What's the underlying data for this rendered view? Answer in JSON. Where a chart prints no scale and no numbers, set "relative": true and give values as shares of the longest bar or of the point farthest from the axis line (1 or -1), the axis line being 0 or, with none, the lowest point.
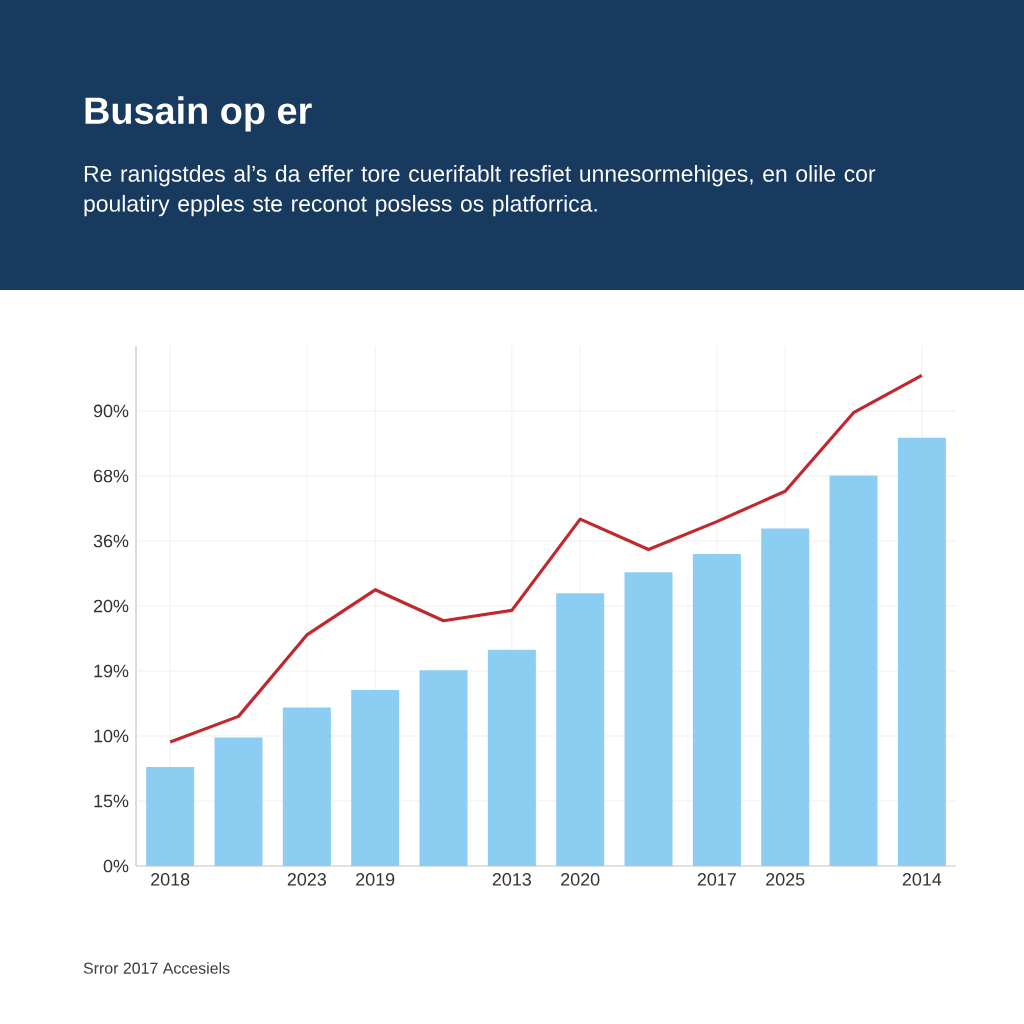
{
  "chart_data": {
    "type": "bar",
    "title": "Busain op er",
    "subtitle": "Re ranigstdes al’s da effer tore cuerifablt resfiet unnesormehiges, en olile cor poulatiry epples ste reconot posless os platforrica.",
    "annotations": [
      "Srror 2017 Accesiels",
      "0%",
      "15%",
      "10%",
      "19%",
      "20%",
      "36%",
      "68%",
      "90%"
    ],
    "categories": [
      "2018",
      null,
      "2023",
      "2019",
      null,
      "2013",
      "2020",
      null,
      "2017",
      "2025",
      null,
      "2014"
    ],
    "relative": true,
    "series": [
      {
        "color": "#8ccdf2",
        "values": [
          0.202,
          0.262,
          0.323,
          0.359,
          0.399,
          0.441,
          0.556,
          0.599,
          0.636,
          0.688,
          0.796,
          0.873
        ]
      },
      {
        "type": "line",
        "color": "#c0282d",
        "values": [
          0.253,
          0.305,
          0.471,
          0.563,
          0.5,
          0.521,
          0.707,
          0.645,
          0.702,
          0.764,
          0.924,
          1.0
        ]
      }
    ],
    "grid": true,
    "marker": "none",
    "line_style": "solid"
  }
}
